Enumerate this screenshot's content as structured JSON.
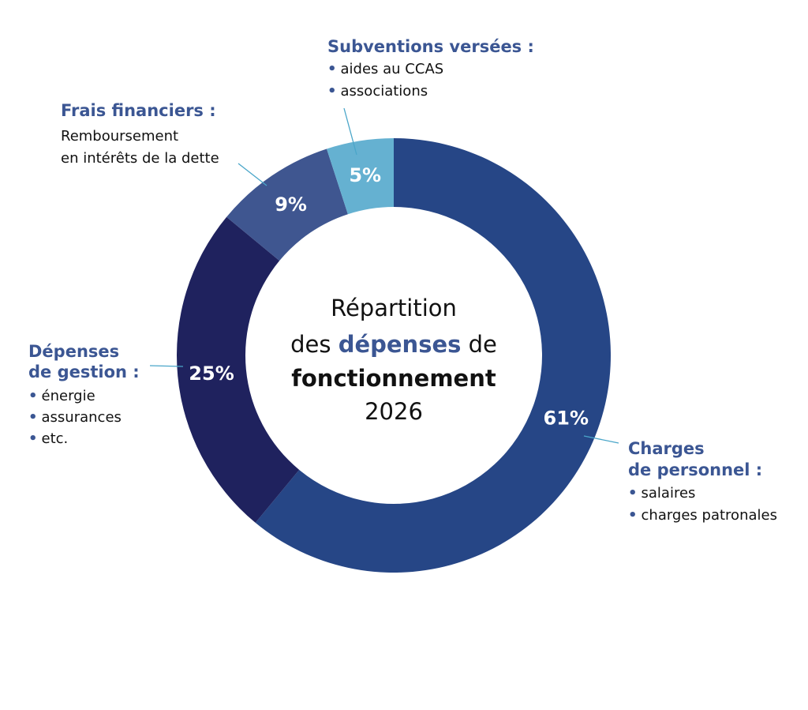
{
  "chart_data": {
    "type": "pie",
    "donut": true,
    "center_title": {
      "line1": "Répartition",
      "line2_pre": "des ",
      "line2_bold": "dépenses",
      "line2_post": " de",
      "line3_bold": "fonctionnement",
      "line4": "2026"
    },
    "slices": [
      {
        "label": "Charges de personnel :",
        "label_lines": [
          "Charges",
          "de personnel :"
        ],
        "value": 61,
        "display": "61%",
        "color": "#264686",
        "items": [
          "salaires",
          "charges patronales"
        ]
      },
      {
        "label": "Dépenses de gestion :",
        "label_lines": [
          "Dépenses",
          "de gestion :"
        ],
        "value": 25,
        "display": "25%",
        "color": "#1f225e",
        "items": [
          "énergie",
          "assurances",
          "etc."
        ]
      },
      {
        "label": "Frais financiers :",
        "label_lines": [
          "Frais financiers :"
        ],
        "value": 9,
        "display": "9%",
        "color": "#3f5690",
        "items": [],
        "description": [
          "Remboursement",
          "en intérêts de la dette"
        ]
      },
      {
        "label": "Subventions versées :",
        "label_lines": [
          "Subventions versées :"
        ],
        "value": 5,
        "display": "5%",
        "color": "#65b1d1",
        "items": [
          "aides au CCAS",
          "associations"
        ]
      }
    ],
    "colors": {
      "accent_text": "#3b5693",
      "bullet": "#3b5693",
      "leader": "#4aa6c9",
      "percent_text": "#ffffff"
    }
  }
}
